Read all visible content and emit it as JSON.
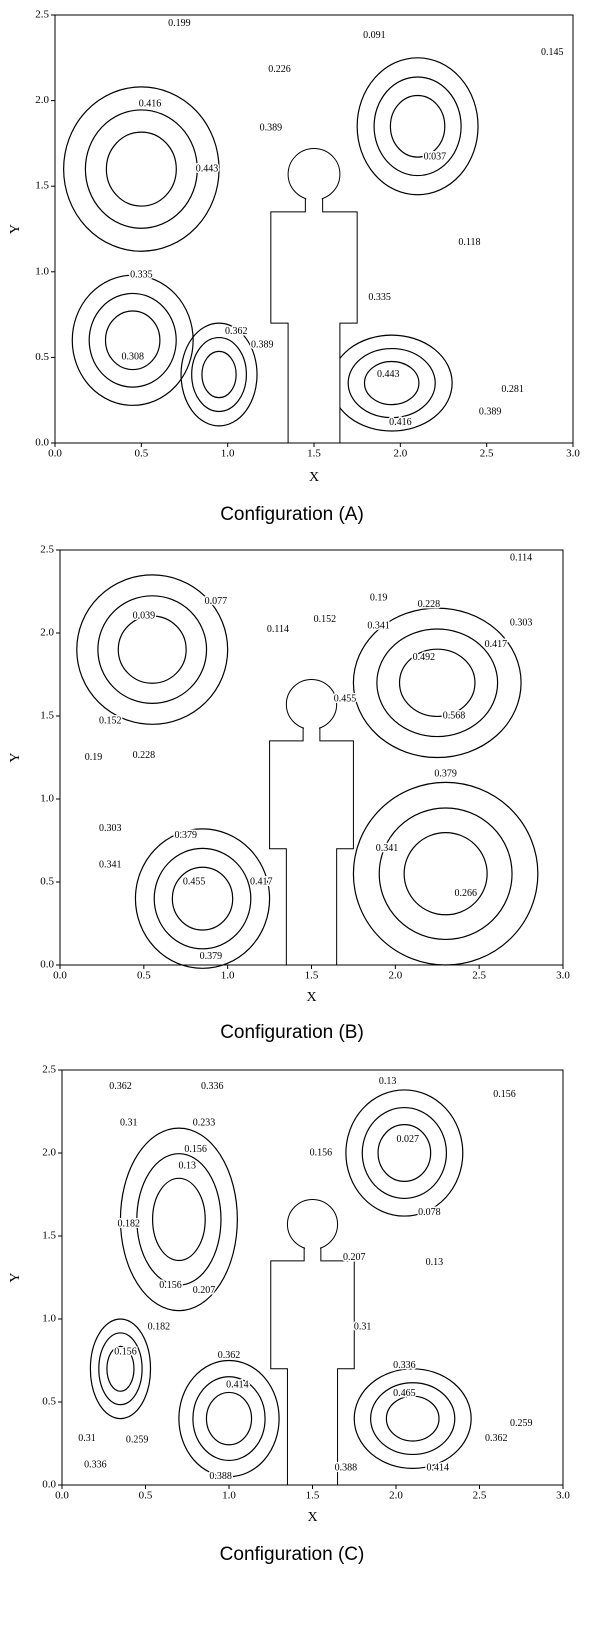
{
  "chart_data": [
    {
      "type": "contour",
      "caption": "Configuration (A)",
      "xlabel": "X",
      "ylabel": "Y",
      "xlim": [
        0,
        3
      ],
      "ylim": [
        0,
        2.5
      ],
      "xticks": [
        {
          "value": 0,
          "label": "0.0"
        },
        {
          "value": 0.5,
          "label": "0.5"
        },
        {
          "value": 1,
          "label": "1.0"
        },
        {
          "value": 1.5,
          "label": "1.5"
        },
        {
          "value": 2,
          "label": "2.0"
        },
        {
          "value": 2.5,
          "label": "2.5"
        },
        {
          "value": 3,
          "label": "3.0"
        }
      ],
      "yticks": [
        {
          "value": 0,
          "label": "0.0"
        },
        {
          "value": 0.5,
          "label": "0.5"
        },
        {
          "value": 1,
          "label": "1.0"
        },
        {
          "value": 1.5,
          "label": "1.5"
        },
        {
          "value": 2,
          "label": "2.0"
        },
        {
          "value": 2.5,
          "label": "2.5"
        }
      ],
      "contour_labels": [
        {
          "value": 0.199,
          "x": 0.72,
          "y": 2.45
        },
        {
          "value": 0.226,
          "x": 1.3,
          "y": 2.18
        },
        {
          "value": 0.091,
          "x": 1.85,
          "y": 2.38
        },
        {
          "value": 0.145,
          "x": 2.88,
          "y": 2.28
        },
        {
          "value": 0.416,
          "x": 0.55,
          "y": 1.98
        },
        {
          "value": 0.389,
          "x": 1.25,
          "y": 1.84
        },
        {
          "value": 0.443,
          "x": 0.88,
          "y": 1.6
        },
        {
          "value": 0.037,
          "x": 2.2,
          "y": 1.67
        },
        {
          "value": 0.118,
          "x": 2.4,
          "y": 1.17
        },
        {
          "value": 0.335,
          "x": 0.5,
          "y": 0.98
        },
        {
          "value": 0.362,
          "x": 1.05,
          "y": 0.65
        },
        {
          "value": 0.389,
          "x": 1.2,
          "y": 0.57
        },
        {
          "value": 0.308,
          "x": 0.45,
          "y": 0.5
        },
        {
          "value": 0.335,
          "x": 1.88,
          "y": 0.85
        },
        {
          "value": 0.443,
          "x": 1.93,
          "y": 0.4
        },
        {
          "value": 0.281,
          "x": 2.65,
          "y": 0.31
        },
        {
          "value": 0.389,
          "x": 2.52,
          "y": 0.18
        },
        {
          "value": 0.416,
          "x": 2.0,
          "y": 0.12
        }
      ]
    },
    {
      "type": "contour",
      "caption": "Configuration (B)",
      "xlabel": "X",
      "ylabel": "Y",
      "xlim": [
        0,
        3
      ],
      "ylim": [
        0,
        2.5
      ],
      "xticks": [
        {
          "value": 0,
          "label": "0.0"
        },
        {
          "value": 0.5,
          "label": "0.5"
        },
        {
          "value": 1,
          "label": "1.0"
        },
        {
          "value": 1.5,
          "label": "1.5"
        },
        {
          "value": 2,
          "label": "2.0"
        },
        {
          "value": 2.5,
          "label": "2.5"
        },
        {
          "value": 3,
          "label": "3.0"
        }
      ],
      "yticks": [
        {
          "value": 0,
          "label": "0.0"
        },
        {
          "value": 0.5,
          "label": "0.5"
        },
        {
          "value": 1,
          "label": "1.0"
        },
        {
          "value": 1.5,
          "label": "1.5"
        },
        {
          "value": 2,
          "label": "2.0"
        },
        {
          "value": 2.5,
          "label": "2.5"
        }
      ],
      "contour_labels": [
        {
          "value": 0.114,
          "x": 2.75,
          "y": 2.45
        },
        {
          "value": 0.077,
          "x": 0.93,
          "y": 2.19
        },
        {
          "value": 0.039,
          "x": 0.5,
          "y": 2.1
        },
        {
          "value": 0.114,
          "x": 1.3,
          "y": 2.02
        },
        {
          "value": 0.152,
          "x": 1.58,
          "y": 2.08
        },
        {
          "value": 0.19,
          "x": 1.9,
          "y": 2.21
        },
        {
          "value": 0.228,
          "x": 2.2,
          "y": 2.17
        },
        {
          "value": 0.303,
          "x": 2.75,
          "y": 2.06
        },
        {
          "value": 0.341,
          "x": 1.9,
          "y": 2.04
        },
        {
          "value": 0.417,
          "x": 2.6,
          "y": 1.93
        },
        {
          "value": 0.492,
          "x": 2.17,
          "y": 1.85
        },
        {
          "value": 0.455,
          "x": 1.7,
          "y": 1.6
        },
        {
          "value": 0.568,
          "x": 2.35,
          "y": 1.5
        },
        {
          "value": 0.152,
          "x": 0.3,
          "y": 1.47
        },
        {
          "value": 0.19,
          "x": 0.2,
          "y": 1.25
        },
        {
          "value": 0.228,
          "x": 0.5,
          "y": 1.26
        },
        {
          "value": 0.379,
          "x": 2.3,
          "y": 1.15
        },
        {
          "value": 0.303,
          "x": 0.3,
          "y": 0.82
        },
        {
          "value": 0.341,
          "x": 0.3,
          "y": 0.6
        },
        {
          "value": 0.379,
          "x": 0.75,
          "y": 0.78
        },
        {
          "value": 0.341,
          "x": 1.95,
          "y": 0.7
        },
        {
          "value": 0.455,
          "x": 0.8,
          "y": 0.5
        },
        {
          "value": 0.417,
          "x": 1.2,
          "y": 0.5
        },
        {
          "value": 0.266,
          "x": 2.42,
          "y": 0.43
        },
        {
          "value": 0.379,
          "x": 0.9,
          "y": 0.05
        }
      ]
    },
    {
      "type": "contour",
      "caption": "Configuration (C)",
      "xlabel": "X",
      "ylabel": "Y",
      "xlim": [
        0,
        3
      ],
      "ylim": [
        0,
        2.5
      ],
      "xticks": [
        {
          "value": 0,
          "label": "0.0"
        },
        {
          "value": 0.5,
          "label": "0.5"
        },
        {
          "value": 1,
          "label": "1.0"
        },
        {
          "value": 1.5,
          "label": "1.5"
        },
        {
          "value": 2,
          "label": "2.0"
        },
        {
          "value": 2.5,
          "label": "2.5"
        },
        {
          "value": 3,
          "label": "3.0"
        }
      ],
      "yticks": [
        {
          "value": 0,
          "label": "0.0"
        },
        {
          "value": 0.5,
          "label": "0.5"
        },
        {
          "value": 1,
          "label": "1.0"
        },
        {
          "value": 1.5,
          "label": "1.5"
        },
        {
          "value": 2,
          "label": "2.0"
        },
        {
          "value": 2.5,
          "label": "2.5"
        }
      ],
      "contour_labels": [
        {
          "value": 0.362,
          "x": 0.35,
          "y": 2.4
        },
        {
          "value": 0.336,
          "x": 0.9,
          "y": 2.4
        },
        {
          "value": 0.13,
          "x": 1.95,
          "y": 2.43
        },
        {
          "value": 0.156,
          "x": 2.65,
          "y": 2.35
        },
        {
          "value": 0.31,
          "x": 0.4,
          "y": 2.18
        },
        {
          "value": 0.233,
          "x": 0.85,
          "y": 2.18
        },
        {
          "value": 0.156,
          "x": 0.8,
          "y": 2.02
        },
        {
          "value": 0.027,
          "x": 2.07,
          "y": 2.08
        },
        {
          "value": 0.13,
          "x": 0.75,
          "y": 1.92
        },
        {
          "value": 0.156,
          "x": 1.55,
          "y": 2.0
        },
        {
          "value": 0.182,
          "x": 0.4,
          "y": 1.57
        },
        {
          "value": 0.078,
          "x": 2.2,
          "y": 1.64
        },
        {
          "value": 0.207,
          "x": 1.75,
          "y": 1.37
        },
        {
          "value": 0.156,
          "x": 0.65,
          "y": 1.2
        },
        {
          "value": 0.207,
          "x": 0.85,
          "y": 1.17
        },
        {
          "value": 0.13,
          "x": 2.23,
          "y": 1.34
        },
        {
          "value": 0.182,
          "x": 0.58,
          "y": 0.95
        },
        {
          "value": 0.31,
          "x": 1.8,
          "y": 0.95
        },
        {
          "value": 0.362,
          "x": 1.0,
          "y": 0.78
        },
        {
          "value": 0.336,
          "x": 2.05,
          "y": 0.72
        },
        {
          "value": 0.156,
          "x": 0.38,
          "y": 0.8
        },
        {
          "value": 0.414,
          "x": 1.05,
          "y": 0.6
        },
        {
          "value": 0.465,
          "x": 2.05,
          "y": 0.55
        },
        {
          "value": 0.259,
          "x": 2.75,
          "y": 0.37
        },
        {
          "value": 0.31,
          "x": 0.15,
          "y": 0.28
        },
        {
          "value": 0.259,
          "x": 0.45,
          "y": 0.27
        },
        {
          "value": 0.362,
          "x": 2.6,
          "y": 0.28
        },
        {
          "value": 0.336,
          "x": 0.2,
          "y": 0.12
        },
        {
          "value": 0.388,
          "x": 0.95,
          "y": 0.05
        },
        {
          "value": 0.414,
          "x": 2.25,
          "y": 0.1
        },
        {
          "value": 0.388,
          "x": 1.7,
          "y": 0.1
        }
      ]
    }
  ]
}
